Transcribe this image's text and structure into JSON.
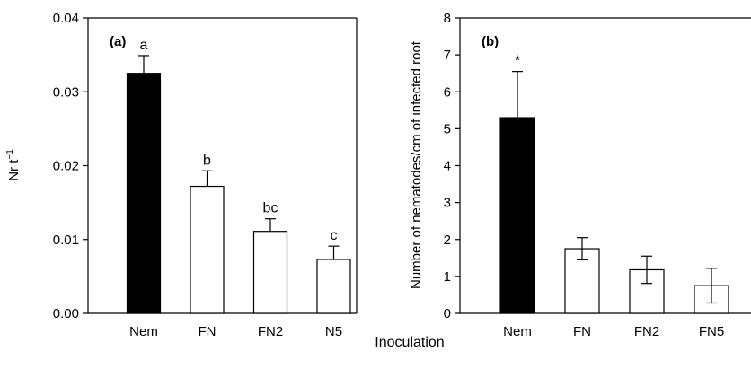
{
  "chart_data": [
    {
      "type": "bar",
      "panel_label": "(a)",
      "categories": [
        "Nem",
        "FN",
        "FN2",
        "N5"
      ],
      "values": [
        0.0325,
        0.0172,
        0.0111,
        0.0073
      ],
      "error": [
        0.0024,
        0.0021,
        0.0017,
        0.0018
      ],
      "significance": [
        "a",
        "b",
        "bc",
        "c"
      ],
      "bar_fill": [
        "#000000",
        "#ffffff",
        "#ffffff",
        "#ffffff"
      ],
      "ylabel_base": "Nr t",
      "ylabel_sup": "−1",
      "ylim": [
        0,
        0.04
      ],
      "yticks": [
        "0.00",
        "0.01",
        "0.02",
        "0.03",
        "0.04"
      ],
      "ytick_values": [
        0,
        0.01,
        0.02,
        0.03,
        0.04
      ],
      "grid": false
    },
    {
      "type": "bar",
      "panel_label": "(b)",
      "categories": [
        "Nem",
        "FN",
        "FN2",
        "FN5"
      ],
      "values": [
        5.3,
        1.75,
        1.18,
        0.75
      ],
      "error": [
        1.25,
        0.3,
        0.37,
        0.47
      ],
      "significance": [
        "*",
        "",
        "",
        ""
      ],
      "bar_fill": [
        "#000000",
        "#ffffff",
        "#ffffff",
        "#ffffff"
      ],
      "ylabel": "Number of nematodes/cm of infected root",
      "ylim": [
        0,
        8
      ],
      "yticks": [
        "0",
        "1",
        "2",
        "3",
        "4",
        "5",
        "6",
        "7",
        "8"
      ],
      "ytick_values": [
        0,
        1,
        2,
        3,
        4,
        5,
        6,
        7,
        8
      ],
      "grid": false
    }
  ],
  "shared_xlabel": "Inoculation"
}
